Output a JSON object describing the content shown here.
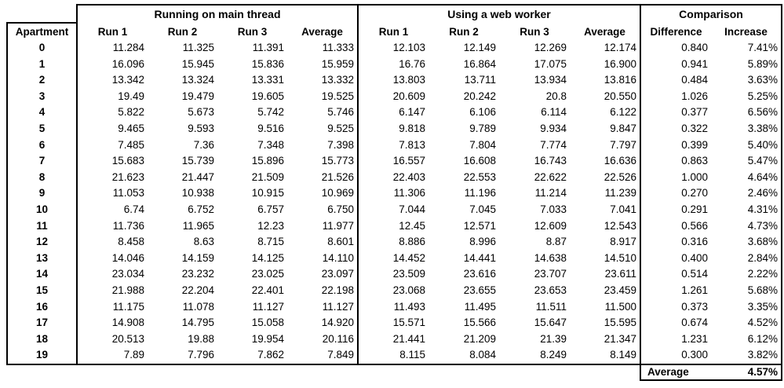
{
  "colors": {
    "background": "#ffffff",
    "text": "#000000",
    "border": "#000000"
  },
  "table": {
    "row_header": "Apartment",
    "groups": [
      {
        "label": "Running on main thread",
        "columns": [
          "Run 1",
          "Run 2",
          "Run 3",
          "Average"
        ]
      },
      {
        "label": "Using a web worker",
        "columns": [
          "Run 1",
          "Run 2",
          "Run 3",
          "Average"
        ]
      },
      {
        "label": "Comparison",
        "columns": [
          "Difference",
          "Increase"
        ]
      }
    ],
    "rows": [
      {
        "apartment": "0",
        "main": [
          "11.284",
          "11.325",
          "11.391",
          "11.333"
        ],
        "worker": [
          "12.103",
          "12.149",
          "12.269",
          "12.174"
        ],
        "difference": "0.840",
        "increase": "7.41%"
      },
      {
        "apartment": "1",
        "main": [
          "16.096",
          "15.945",
          "15.836",
          "15.959"
        ],
        "worker": [
          "16.76",
          "16.864",
          "17.075",
          "16.900"
        ],
        "difference": "0.941",
        "increase": "5.89%"
      },
      {
        "apartment": "2",
        "main": [
          "13.342",
          "13.324",
          "13.331",
          "13.332"
        ],
        "worker": [
          "13.803",
          "13.711",
          "13.934",
          "13.816"
        ],
        "difference": "0.484",
        "increase": "3.63%"
      },
      {
        "apartment": "3",
        "main": [
          "19.49",
          "19.479",
          "19.605",
          "19.525"
        ],
        "worker": [
          "20.609",
          "20.242",
          "20.8",
          "20.550"
        ],
        "difference": "1.026",
        "increase": "5.25%"
      },
      {
        "apartment": "4",
        "main": [
          "5.822",
          "5.673",
          "5.742",
          "5.746"
        ],
        "worker": [
          "6.147",
          "6.106",
          "6.114",
          "6.122"
        ],
        "difference": "0.377",
        "increase": "6.56%"
      },
      {
        "apartment": "5",
        "main": [
          "9.465",
          "9.593",
          "9.516",
          "9.525"
        ],
        "worker": [
          "9.818",
          "9.789",
          "9.934",
          "9.847"
        ],
        "difference": "0.322",
        "increase": "3.38%"
      },
      {
        "apartment": "6",
        "main": [
          "7.485",
          "7.36",
          "7.348",
          "7.398"
        ],
        "worker": [
          "7.813",
          "7.804",
          "7.774",
          "7.797"
        ],
        "difference": "0.399",
        "increase": "5.40%"
      },
      {
        "apartment": "7",
        "main": [
          "15.683",
          "15.739",
          "15.896",
          "15.773"
        ],
        "worker": [
          "16.557",
          "16.608",
          "16.743",
          "16.636"
        ],
        "difference": "0.863",
        "increase": "5.47%"
      },
      {
        "apartment": "8",
        "main": [
          "21.623",
          "21.447",
          "21.509",
          "21.526"
        ],
        "worker": [
          "22.403",
          "22.553",
          "22.622",
          "22.526"
        ],
        "difference": "1.000",
        "increase": "4.64%"
      },
      {
        "apartment": "9",
        "main": [
          "11.053",
          "10.938",
          "10.915",
          "10.969"
        ],
        "worker": [
          "11.306",
          "11.196",
          "11.214",
          "11.239"
        ],
        "difference": "0.270",
        "increase": "2.46%"
      },
      {
        "apartment": "10",
        "main": [
          "6.74",
          "6.752",
          "6.757",
          "6.750"
        ],
        "worker": [
          "7.044",
          "7.045",
          "7.033",
          "7.041"
        ],
        "difference": "0.291",
        "increase": "4.31%"
      },
      {
        "apartment": "11",
        "main": [
          "11.736",
          "11.965",
          "12.23",
          "11.977"
        ],
        "worker": [
          "12.45",
          "12.571",
          "12.609",
          "12.543"
        ],
        "difference": "0.566",
        "increase": "4.73%"
      },
      {
        "apartment": "12",
        "main": [
          "8.458",
          "8.63",
          "8.715",
          "8.601"
        ],
        "worker": [
          "8.886",
          "8.996",
          "8.87",
          "8.917"
        ],
        "difference": "0.316",
        "increase": "3.68%"
      },
      {
        "apartment": "13",
        "main": [
          "14.046",
          "14.159",
          "14.125",
          "14.110"
        ],
        "worker": [
          "14.452",
          "14.441",
          "14.638",
          "14.510"
        ],
        "difference": "0.400",
        "increase": "2.84%"
      },
      {
        "apartment": "14",
        "main": [
          "23.034",
          "23.232",
          "23.025",
          "23.097"
        ],
        "worker": [
          "23.509",
          "23.616",
          "23.707",
          "23.611"
        ],
        "difference": "0.514",
        "increase": "2.22%"
      },
      {
        "apartment": "15",
        "main": [
          "21.988",
          "22.204",
          "22.401",
          "22.198"
        ],
        "worker": [
          "23.068",
          "23.655",
          "23.653",
          "23.459"
        ],
        "difference": "1.261",
        "increase": "5.68%"
      },
      {
        "apartment": "16",
        "main": [
          "11.175",
          "11.078",
          "11.127",
          "11.127"
        ],
        "worker": [
          "11.493",
          "11.495",
          "11.511",
          "11.500"
        ],
        "difference": "0.373",
        "increase": "3.35%"
      },
      {
        "apartment": "17",
        "main": [
          "14.908",
          "14.795",
          "15.058",
          "14.920"
        ],
        "worker": [
          "15.571",
          "15.566",
          "15.647",
          "15.595"
        ],
        "difference": "0.674",
        "increase": "4.52%"
      },
      {
        "apartment": "18",
        "main": [
          "20.513",
          "19.88",
          "19.954",
          "20.116"
        ],
        "worker": [
          "21.441",
          "21.209",
          "21.39",
          "21.347"
        ],
        "difference": "1.231",
        "increase": "6.12%"
      },
      {
        "apartment": "19",
        "main": [
          "7.89",
          "7.796",
          "7.862",
          "7.849"
        ],
        "worker": [
          "8.115",
          "8.084",
          "8.249",
          "8.149"
        ],
        "difference": "0.300",
        "increase": "3.82%"
      }
    ],
    "footer": {
      "label": "Average",
      "value": "4.57%"
    }
  }
}
